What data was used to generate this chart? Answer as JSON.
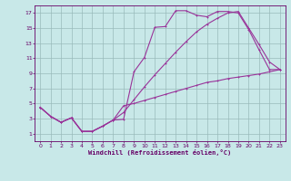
{
  "bg_color": "#c8e8e8",
  "line_color": "#993399",
  "grid_color": "#99bbbb",
  "xlabel": "Windchill (Refroidissement éolien,°C)",
  "xlabel_color": "#660066",
  "tick_color": "#660066",
  "xlim": [
    -0.5,
    23.5
  ],
  "ylim": [
    0,
    18
  ],
  "xticks": [
    0,
    1,
    2,
    3,
    4,
    5,
    6,
    7,
    8,
    9,
    10,
    11,
    12,
    13,
    14,
    15,
    16,
    17,
    18,
    19,
    20,
    21,
    22,
    23
  ],
  "yticks": [
    1,
    3,
    5,
    7,
    9,
    11,
    13,
    15,
    17
  ],
  "curve1_x": [
    0,
    1,
    2,
    3,
    4,
    5,
    6,
    7,
    8,
    9,
    10,
    11,
    12,
    13,
    14,
    15,
    16,
    17,
    18,
    19,
    20,
    21,
    22,
    23
  ],
  "curve1_y": [
    4.5,
    3.3,
    2.5,
    3.1,
    1.3,
    1.3,
    2.0,
    2.8,
    2.9,
    9.2,
    11.1,
    15.1,
    15.2,
    17.3,
    17.3,
    16.7,
    16.5,
    17.2,
    17.2,
    17.0,
    14.8,
    12.1,
    9.5,
    9.5
  ],
  "curve2_x": [
    0,
    1,
    2,
    3,
    4,
    5,
    6,
    7,
    8,
    9,
    10,
    11,
    12,
    13,
    14,
    15,
    16,
    17,
    18,
    19,
    20,
    21,
    22,
    23
  ],
  "curve2_y": [
    4.5,
    3.3,
    2.5,
    3.1,
    1.3,
    1.3,
    2.0,
    2.8,
    3.8,
    5.5,
    7.2,
    8.8,
    10.3,
    11.8,
    13.2,
    14.5,
    15.5,
    16.3,
    17.0,
    17.2,
    15.0,
    12.8,
    10.5,
    9.5
  ],
  "curve3_x": [
    0,
    1,
    2,
    3,
    4,
    5,
    6,
    7,
    8,
    9,
    10,
    11,
    12,
    13,
    14,
    15,
    16,
    17,
    18,
    19,
    20,
    21,
    22,
    23
  ],
  "curve3_y": [
    4.5,
    3.3,
    2.5,
    3.1,
    1.3,
    1.3,
    2.0,
    2.8,
    4.7,
    5.0,
    5.4,
    5.8,
    6.2,
    6.6,
    7.0,
    7.4,
    7.8,
    8.0,
    8.3,
    8.5,
    8.7,
    8.9,
    9.2,
    9.5
  ],
  "marker_size": 2.0
}
